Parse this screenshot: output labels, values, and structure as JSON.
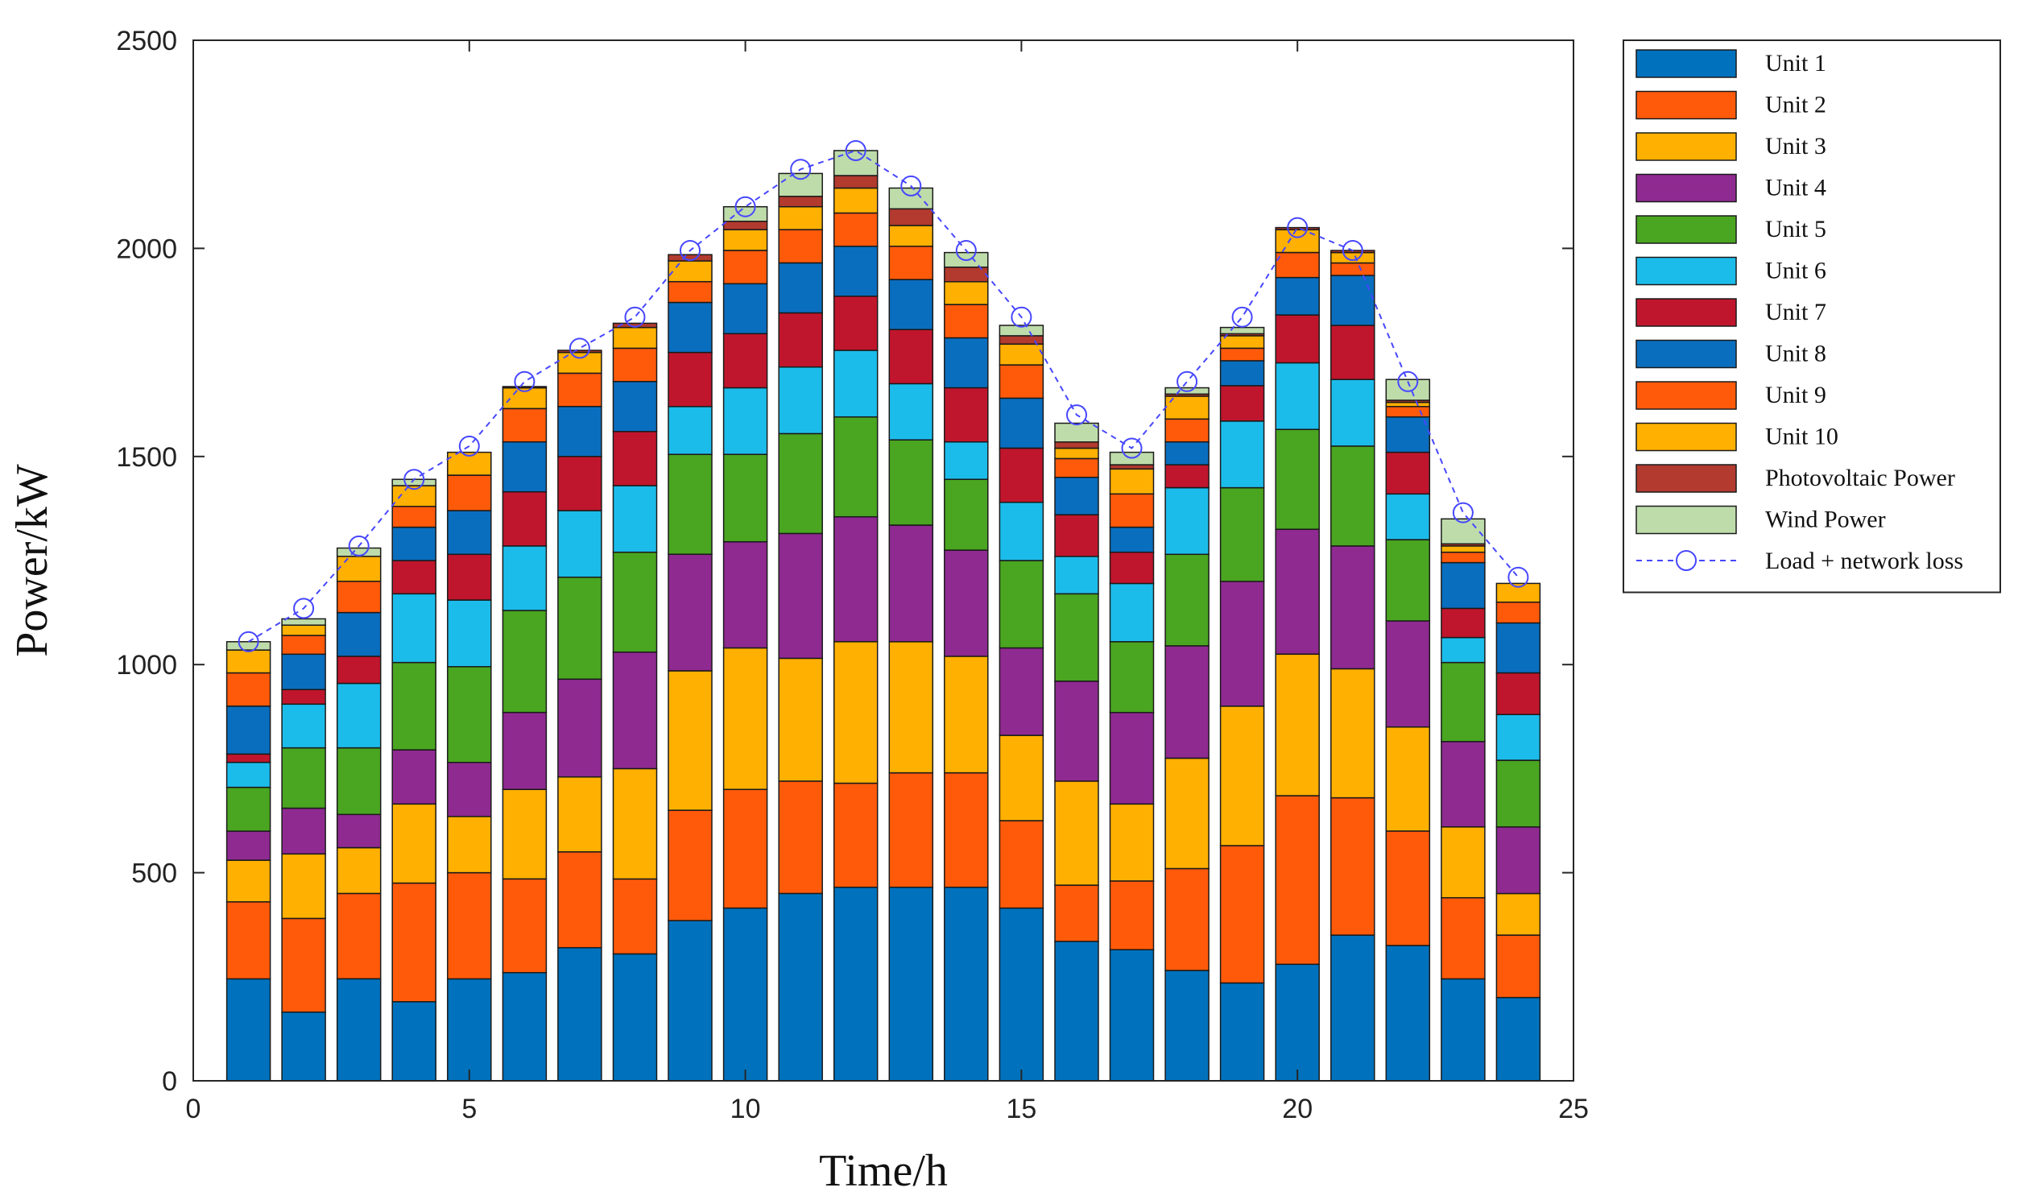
{
  "chart_data": {
    "type": "bar",
    "stacked": true,
    "xlabel": "Time/h",
    "ylabel": "Power/kW",
    "xlim": [
      0,
      25
    ],
    "ylim": [
      0,
      2500
    ],
    "xticks": [
      0,
      5,
      10,
      15,
      20,
      25
    ],
    "yticks": [
      0,
      500,
      1000,
      1500,
      2000,
      2500
    ],
    "grid": false,
    "legend_position": "outside-top-right",
    "x": [
      1,
      2,
      3,
      4,
      5,
      6,
      7,
      8,
      9,
      10,
      11,
      12,
      13,
      14,
      15,
      16,
      17,
      18,
      19,
      20,
      21,
      22,
      23,
      24
    ],
    "series": [
      {
        "name": "Unit 1",
        "color": "#0072BD",
        "values": [
          245,
          165,
          245,
          190,
          245,
          260,
          320,
          305,
          385,
          415,
          450,
          465,
          465,
          465,
          415,
          335,
          315,
          265,
          235,
          280,
          350,
          325,
          245,
          200
        ]
      },
      {
        "name": "Unit 2",
        "color": "#FF5A0A",
        "values": [
          185,
          225,
          205,
          285,
          255,
          225,
          230,
          180,
          265,
          285,
          270,
          250,
          275,
          275,
          210,
          135,
          165,
          245,
          330,
          405,
          330,
          275,
          195,
          150
        ]
      },
      {
        "name": "Unit 3",
        "color": "#FFB000",
        "values": [
          100,
          155,
          110,
          190,
          135,
          215,
          180,
          265,
          335,
          340,
          295,
          340,
          315,
          280,
          205,
          250,
          185,
          265,
          335,
          340,
          310,
          250,
          170,
          100
        ]
      },
      {
        "name": "Unit 4",
        "color": "#8F2A91",
        "values": [
          70,
          110,
          80,
          130,
          130,
          185,
          235,
          280,
          280,
          255,
          300,
          300,
          280,
          255,
          210,
          240,
          220,
          270,
          300,
          300,
          295,
          255,
          205,
          160
        ]
      },
      {
        "name": "Unit 5",
        "color": "#4AA521",
        "values": [
          105,
          145,
          160,
          210,
          230,
          245,
          245,
          240,
          240,
          210,
          240,
          240,
          205,
          170,
          210,
          210,
          170,
          220,
          225,
          240,
          240,
          195,
          190,
          160
        ]
      },
      {
        "name": "Unit 6",
        "color": "#1CBCEA",
        "values": [
          60,
          105,
          155,
          165,
          160,
          155,
          160,
          160,
          115,
          160,
          160,
          160,
          135,
          90,
          140,
          90,
          140,
          160,
          160,
          160,
          160,
          110,
          60,
          110
        ]
      },
      {
        "name": "Unit 7",
        "color": "#C0162D",
        "values": [
          20,
          35,
          65,
          80,
          110,
          130,
          130,
          130,
          130,
          130,
          130,
          130,
          130,
          130,
          130,
          100,
          75,
          55,
          85,
          115,
          130,
          100,
          70,
          100
        ]
      },
      {
        "name": "Unit 8",
        "color": "#0A6EBF",
        "values": [
          115,
          85,
          105,
          80,
          105,
          120,
          120,
          120,
          120,
          120,
          120,
          120,
          120,
          120,
          120,
          90,
          60,
          55,
          60,
          90,
          120,
          85,
          110,
          120
        ]
      },
      {
        "name": "Unit 9",
        "color": "#FF5A0A",
        "values": [
          80,
          45,
          75,
          50,
          85,
          80,
          80,
          80,
          50,
          80,
          80,
          80,
          80,
          80,
          80,
          45,
          80,
          55,
          30,
          60,
          30,
          25,
          25,
          50
        ]
      },
      {
        "name": "Unit 10",
        "color": "#FFB000",
        "values": [
          55,
          25,
          60,
          50,
          55,
          50,
          50,
          50,
          50,
          50,
          55,
          60,
          50,
          55,
          50,
          25,
          60,
          55,
          30,
          55,
          25,
          10,
          15,
          45
        ]
      },
      {
        "name": "Photovoltaic Power",
        "color": "#B23A2E",
        "values": [
          0,
          0,
          0,
          0,
          0,
          3,
          5,
          10,
          15,
          20,
          25,
          30,
          40,
          35,
          20,
          15,
          10,
          5,
          5,
          5,
          5,
          5,
          5,
          0
        ]
      },
      {
        "name": "Wind Power",
        "color": "#BEDCAA",
        "values": [
          20,
          15,
          20,
          15,
          0,
          0,
          0,
          0,
          0,
          35,
          55,
          60,
          50,
          35,
          25,
          45,
          30,
          15,
          15,
          0,
          0,
          50,
          60,
          0
        ]
      }
    ],
    "line": {
      "name": "Load + network loss",
      "color": "#4747FF",
      "values": [
        1055,
        1135,
        1285,
        1445,
        1525,
        1680,
        1760,
        1835,
        1995,
        2100,
        2190,
        2235,
        2150,
        1995,
        1835,
        1600,
        1520,
        1680,
        1835,
        2050,
        1995,
        1680,
        1365,
        1210
      ]
    }
  }
}
